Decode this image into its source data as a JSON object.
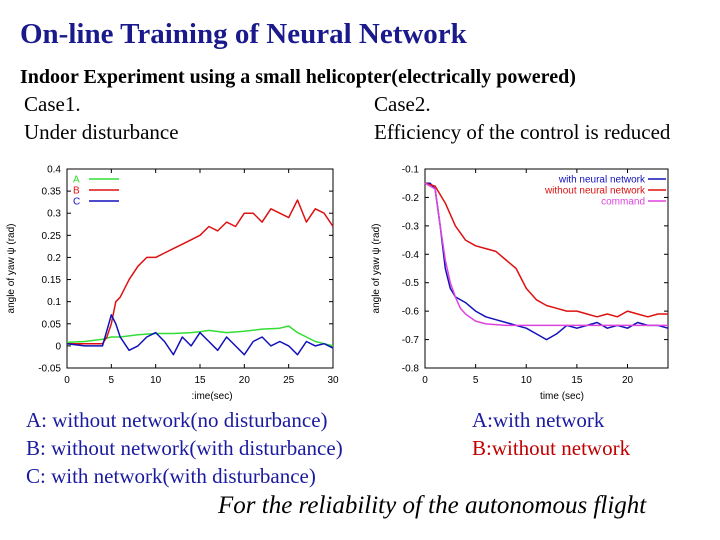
{
  "title": "On-line Training of Neural Network",
  "subtitle": "Indoor Experiment using a small helicopter(electrically powered)",
  "left": {
    "case": "Case1.",
    "desc": "Under disturbance"
  },
  "right": {
    "case": "Case2.",
    "desc": "Efficiency of the control is reduced"
  },
  "notes_left": [
    "A: without network(no disturbance)",
    "B: without network(with disturbance)",
    "C: with network(with disturbance)"
  ],
  "notes_right": [
    "A:with network",
    "B:without network"
  ],
  "footer": "For the reliability of the autonomous flight",
  "colors": {
    "title": "#1a1a8c",
    "series_green": "#33dd33",
    "series_red": "#dd1111",
    "series_blue": "#1111bb",
    "series_magenta": "#dd44dd"
  },
  "chart_data": [
    {
      "type": "line",
      "title": "",
      "xlabel": ":ime(sec)",
      "ylabel": "angle of yaw ψ (rad)",
      "xlim": [
        0,
        30
      ],
      "ylim": [
        -0.05,
        0.4
      ],
      "xticks": [
        "0",
        "5",
        "10",
        "15",
        "20",
        "25",
        "30"
      ],
      "yticks": [
        "-0.05",
        "0",
        "0.05",
        "0.1",
        "0.15",
        "0.2",
        "0.25",
        "0.3",
        "0.35",
        "0.4"
      ],
      "legend_position": "top-left",
      "series": [
        {
          "name": "A",
          "color": "#33dd33",
          "x": [
            0,
            2,
            4,
            5,
            6,
            8,
            10,
            12,
            14,
            15,
            16,
            18,
            20,
            22,
            24,
            25,
            26,
            27,
            28,
            29,
            30
          ],
          "y": [
            0.008,
            0.01,
            0.015,
            0.02,
            0.02,
            0.025,
            0.028,
            0.028,
            0.03,
            0.032,
            0.035,
            0.03,
            0.033,
            0.038,
            0.04,
            0.045,
            0.03,
            0.02,
            0.01,
            0.005,
            0.0
          ]
        },
        {
          "name": "B",
          "color": "#dd1111",
          "x": [
            0,
            2,
            4,
            4.5,
            5,
            5.5,
            6,
            7,
            8,
            9,
            10,
            11,
            12,
            13,
            14,
            15,
            16,
            17,
            18,
            19,
            20,
            21,
            22,
            23,
            24,
            25,
            26,
            27,
            28,
            29,
            30
          ],
          "y": [
            0.005,
            0.005,
            0.005,
            0.02,
            0.05,
            0.1,
            0.11,
            0.15,
            0.18,
            0.2,
            0.2,
            0.21,
            0.22,
            0.23,
            0.24,
            0.25,
            0.27,
            0.26,
            0.28,
            0.27,
            0.3,
            0.3,
            0.28,
            0.31,
            0.3,
            0.29,
            0.33,
            0.28,
            0.31,
            0.3,
            0.27
          ]
        },
        {
          "name": "C",
          "color": "#1111bb",
          "x": [
            0,
            2,
            4,
            5,
            5.5,
            6,
            7,
            8,
            9,
            10,
            11,
            12,
            13,
            14,
            15,
            16,
            17,
            18,
            19,
            20,
            21,
            22,
            23,
            24,
            25,
            26,
            27,
            28,
            29,
            30
          ],
          "y": [
            0.005,
            0.0,
            0.0,
            0.07,
            0.05,
            0.02,
            -0.01,
            0.0,
            0.02,
            0.03,
            0.01,
            -0.02,
            0.02,
            0.0,
            0.03,
            0.01,
            -0.01,
            0.02,
            0.0,
            -0.02,
            0.01,
            0.02,
            0.0,
            0.01,
            0.0,
            -0.02,
            0.01,
            0.0,
            0.005,
            -0.005
          ]
        }
      ]
    },
    {
      "type": "line",
      "title": "",
      "xlabel": "time (sec)",
      "ylabel": "angle of yaw ψ (rad)",
      "xlim": [
        0,
        24
      ],
      "ylim": [
        -0.8,
        -0.1
      ],
      "xticks": [
        "0",
        "5",
        "10",
        "15",
        "20"
      ],
      "yticks": [
        "-0.1",
        "-0.2",
        "-0.3",
        "-0.4",
        "-0.5",
        "-0.6",
        "-0.7",
        "-0.8"
      ],
      "legend_position": "top-right",
      "series": [
        {
          "name": "with neural network",
          "color": "#1111bb",
          "x": [
            0,
            0.5,
            1,
            1.5,
            2,
            2.5,
            3,
            4,
            5,
            6,
            7,
            8,
            9,
            10,
            11,
            12,
            13,
            14,
            15,
            16,
            17,
            18,
            19,
            20,
            21,
            22,
            23,
            24
          ],
          "y": [
            -0.15,
            -0.15,
            -0.17,
            -0.3,
            -0.45,
            -0.52,
            -0.55,
            -0.57,
            -0.6,
            -0.62,
            -0.63,
            -0.64,
            -0.65,
            -0.66,
            -0.68,
            -0.7,
            -0.68,
            -0.65,
            -0.66,
            -0.65,
            -0.64,
            -0.66,
            -0.65,
            -0.66,
            -0.64,
            -0.65,
            -0.65,
            -0.66
          ]
        },
        {
          "name": "without neural network",
          "color": "#dd1111",
          "x": [
            0,
            1,
            2,
            3,
            4,
            5,
            6,
            7,
            8,
            9,
            10,
            11,
            12,
            13,
            14,
            15,
            16,
            17,
            18,
            19,
            20,
            21,
            22,
            23,
            24
          ],
          "y": [
            -0.15,
            -0.16,
            -0.22,
            -0.3,
            -0.35,
            -0.37,
            -0.38,
            -0.39,
            -0.42,
            -0.45,
            -0.52,
            -0.56,
            -0.58,
            -0.59,
            -0.6,
            -0.6,
            -0.61,
            -0.62,
            -0.61,
            -0.62,
            -0.6,
            -0.61,
            -0.62,
            -0.61,
            -0.61
          ]
        },
        {
          "name": "command",
          "color": "#dd44dd",
          "x": [
            0,
            1,
            1.5,
            2,
            2.5,
            3,
            3.5,
            4,
            5,
            6,
            8,
            10,
            15,
            20,
            24
          ],
          "y": [
            -0.15,
            -0.17,
            -0.3,
            -0.42,
            -0.5,
            -0.55,
            -0.59,
            -0.61,
            -0.635,
            -0.645,
            -0.65,
            -0.65,
            -0.65,
            -0.65,
            -0.65
          ]
        }
      ]
    }
  ]
}
